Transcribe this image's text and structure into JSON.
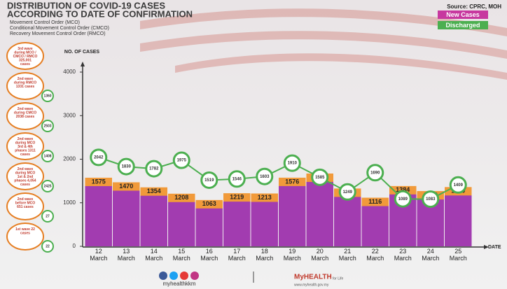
{
  "chart_data": {
    "type": "bar-line",
    "title": "DISTRIBUTION OF COVID-19 CASES",
    "subtitle": "ACCORDING TO DATE OF CONFIRMATION",
    "notes": [
      "Movement Control Order (MCO)",
      "Conditional Movement Control Order (CMCO)",
      "Recovery Movement Control Order (RMCO)"
    ],
    "source": "Source: CPRC, MOH",
    "y_label": "NO. OF CASES",
    "x_label": "DATE",
    "categories": [
      "12 March",
      "13 March",
      "14 March",
      "15 March",
      "16 March",
      "17 March",
      "18 March",
      "19 March",
      "20 March",
      "21 March",
      "22 March",
      "23 March",
      "24 March",
      "25 March"
    ],
    "series": [
      {
        "name": "New Cases",
        "color": "#c7389f",
        "values": [
          1575,
          1470,
          1354,
          1208,
          1063,
          1219,
          1213,
          1576,
          1671,
          1327,
          1116,
          1384,
          1268,
          1360
        ]
      },
      {
        "name": "Discharged",
        "color": "#4caf50",
        "values": [
          2042,
          1830,
          1782,
          1975,
          1519,
          1546,
          1603,
          1910,
          1585,
          1249,
          1690,
          1089,
          1083,
          1409
        ]
      }
    ],
    "ylim": [
      0,
      4000
    ],
    "yticks": [
      0,
      1000,
      2000,
      3000,
      4000
    ],
    "waves": [
      {
        "label": "3rd wave during MCO / CMCO / RMCO 325,001 cases"
      },
      {
        "label": "2nd wave during RMCO 1331 cases",
        "count": "1360"
      },
      {
        "label": "2nd wave during CMCO 2038 cases",
        "count": "2503"
      },
      {
        "label": "2nd wave during MCO 3rd & 4th phases 1311 cases",
        "count": "1408"
      },
      {
        "label": "2nd wave during MCO 1st & 2nd phases 4,054 cases",
        "count": "2425"
      },
      {
        "label": "2nd wave before MCO 651 cases",
        "count": "27"
      },
      {
        "label": "1st wave 22 cases",
        "count": "22"
      }
    ],
    "footer": {
      "social": "myhealthkkm",
      "brand": "MyHEALTH",
      "tagline": "for Life",
      "url": "www.myhealth.gov.my"
    }
  }
}
